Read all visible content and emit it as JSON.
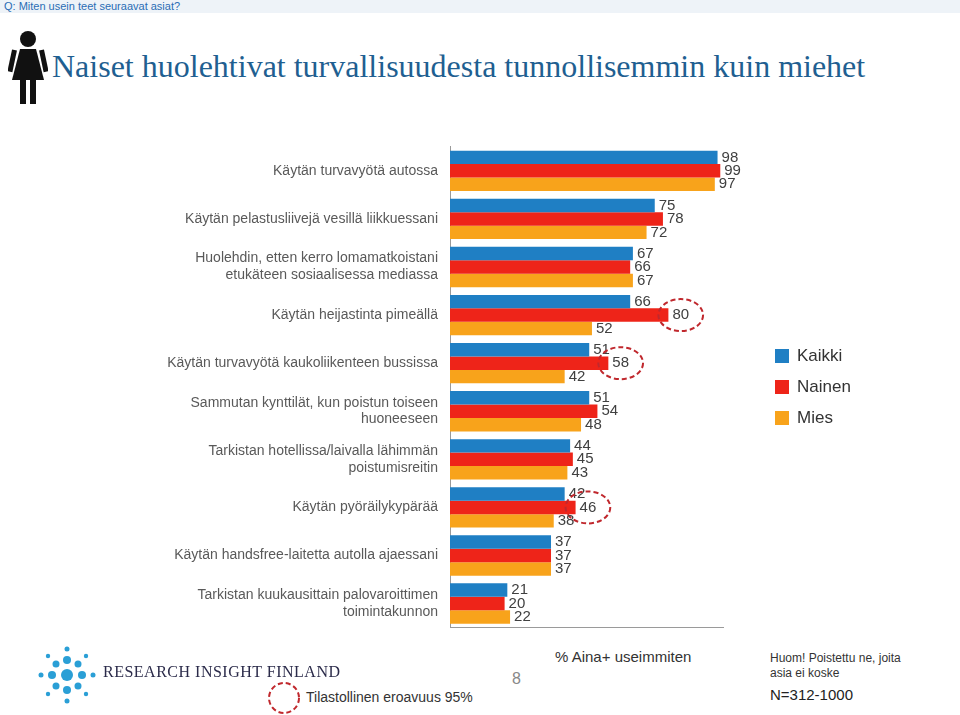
{
  "question": "Q: Miten usein teet seuraavat asiat?",
  "chart_data": {
    "type": "bar",
    "orientation": "horizontal",
    "title": "Naiset huolehtivat turvallisuudesta tunnollisemmin kuin miehet",
    "x_label": "% Aina+ useimmiten",
    "categories": [
      "Käytän turvavyötä autossa",
      "Käytän pelastusliivejä vesillä liikkuessani",
      "Huolehdin, etten kerro lomamatkoistani etukäteen sosiaalisessa mediassa",
      "Käytän heijastinta pimeällä",
      "Käytän turvavyötä kaukoliikenteen bussissa",
      "Sammutan kynttilät, kun poistun toiseen huoneeseen",
      "Tarkistan hotellissa/laivalla lähimmän poistumisreitin",
      "Käytän pyöräilykypärää",
      "Käytän handsfree-laitetta autolla ajaessani",
      "Tarkistan kuukausittain palovaroittimen toimintakunnon"
    ],
    "series": [
      {
        "name": "Kaikki",
        "color": "#1f7fc4",
        "values": [
          98,
          75,
          67,
          66,
          51,
          51,
          44,
          42,
          37,
          21
        ]
      },
      {
        "name": "Nainen",
        "color": "#ee2419",
        "values": [
          99,
          78,
          66,
          80,
          58,
          54,
          45,
          46,
          37,
          20
        ],
        "significant": [
          false,
          false,
          false,
          true,
          true,
          false,
          false,
          true,
          false,
          false
        ]
      },
      {
        "name": "Mies",
        "color": "#f8a31b",
        "values": [
          97,
          72,
          67,
          52,
          42,
          48,
          43,
          38,
          37,
          22
        ]
      }
    ],
    "xlim": [
      0,
      100
    ],
    "data_labels": true,
    "tick_labels": "y",
    "grid": false,
    "legend": "right",
    "annotations": {
      "significance_note": "Tilastollinen eroavuus 95%",
      "note": "Huom! Poistettu ne, joita asia ei koske",
      "sample": "N=312-1000"
    }
  },
  "footer": {
    "logo": "RESEARCH INSIGHT FINLAND",
    "page": 8
  }
}
